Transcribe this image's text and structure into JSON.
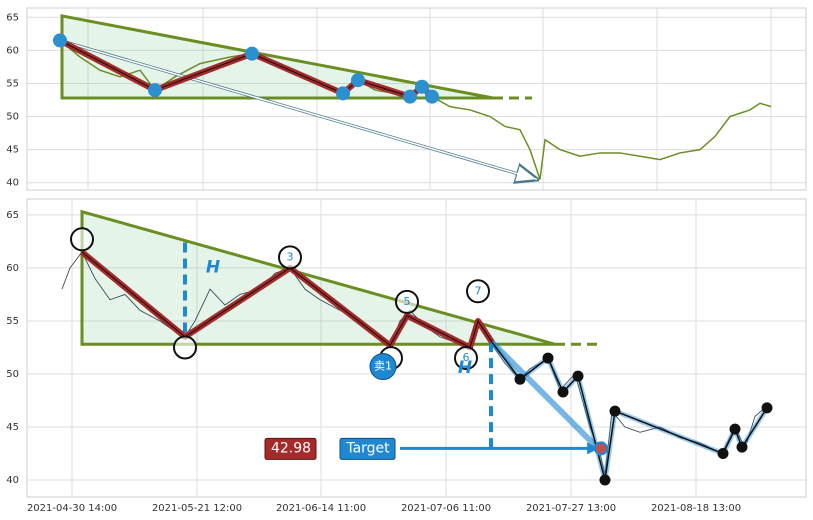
{
  "chart_data": [
    {
      "type": "line",
      "xlim": [
        27,
        806
      ],
      "ylim": [
        38.9,
        66.4
      ],
      "xticks": [
        88,
        203,
        317,
        430,
        543,
        657,
        771
      ],
      "yticks": [
        40,
        45,
        50,
        55,
        60,
        65
      ],
      "grid": true,
      "series": [
        {
          "color": "#6b8e23",
          "x": [
            60,
            80,
            100,
            120,
            140,
            155,
            175,
            200,
            230,
            252,
            270,
            290,
            310,
            330,
            345,
            358,
            375,
            395,
            410,
            422,
            432,
            450,
            470,
            490,
            505,
            520,
            530,
            540,
            545,
            560,
            580,
            600,
            620,
            640,
            660,
            680,
            700,
            715,
            730,
            750,
            760,
            771
          ],
          "values": [
            61.5,
            59,
            57,
            56,
            57,
            54,
            56,
            58,
            59,
            59.5,
            58,
            57,
            56,
            54.5,
            53.5,
            55.5,
            54,
            53.5,
            53,
            54.5,
            53,
            51.5,
            51,
            50,
            48.5,
            48,
            45,
            40.5,
            46.5,
            45,
            44,
            44.5,
            44.5,
            44,
            43.5,
            44.5,
            45,
            47,
            50,
            51,
            52,
            51.5
          ]
        }
      ],
      "triangle": {
        "color": "#6b8e23",
        "x": [
          62,
          62,
          493
        ],
        "values": [
          65.2,
          52.8,
          52.8
        ]
      },
      "extension": {
        "x": [
          493,
          532
        ],
        "values": [
          52.8,
          52.8
        ]
      },
      "zigzag": {
        "color": "#a52a2a",
        "x": [
          60,
          155,
          252,
          343,
          358,
          410,
          422,
          432
        ],
        "values": [
          61.5,
          54,
          59.5,
          53.5,
          55.5,
          53,
          54.5,
          53
        ]
      },
      "arrow": {
        "x": [
          60,
          537
        ],
        "values": [
          61.5,
          40.5
        ]
      }
    },
    {
      "type": "line",
      "xlim": [
        27,
        806
      ],
      "ylim": [
        38.4,
        66.5
      ],
      "xticks": [
        {
          "value": 72,
          "label": "2021-04-30 14:00"
        },
        {
          "value": 197,
          "label": "2021-05-21 12:00"
        },
        {
          "value": 321,
          "label": "2021-06-14 11:00"
        },
        {
          "value": 446,
          "label": "2021-07-06 11:00"
        },
        {
          "value": 571,
          "label": "2021-07-27 13:00"
        },
        {
          "value": 696,
          "label": "2021-08-18 13:00"
        }
      ],
      "yticks": [
        40,
        45,
        50,
        55,
        60,
        65
      ],
      "grid": true,
      "series": [
        {
          "color": "#3d4a5a",
          "x": [
            62,
            70,
            82,
            95,
            110,
            125,
            140,
            160,
            175,
            185,
            195,
            210,
            225,
            240,
            260,
            275,
            290,
            305,
            320,
            340,
            360,
            375,
            390,
            400,
            410,
            425,
            440,
            455,
            470,
            478,
            490,
            505,
            520,
            530,
            540,
            548,
            560,
            575,
            590,
            600,
            605,
            612,
            625,
            640,
            660,
            680,
            700,
            722,
            735,
            745,
            755,
            767
          ],
          "values": [
            58,
            60,
            61.5,
            59,
            57,
            57.5,
            56,
            55,
            54,
            53.5,
            55,
            58,
            56.5,
            57.5,
            58,
            59.5,
            60,
            58,
            57,
            56,
            55,
            54,
            52.5,
            55,
            56,
            54.5,
            53.5,
            53,
            52.5,
            55,
            53,
            51,
            49.5,
            50.5,
            51,
            51.5,
            48.5,
            50,
            45,
            42.5,
            40.5,
            46.5,
            45,
            44.5,
            45,
            44,
            43.5,
            42.5,
            45,
            43,
            46,
            47
          ]
        }
      ],
      "triangle": {
        "color": "#6b8e23",
        "x": [
          82,
          82,
          555
        ],
        "values": [
          65.3,
          52.8,
          52.8
        ]
      },
      "extension": {
        "x": [
          555,
          598
        ],
        "values": [
          52.8,
          52.8
        ]
      },
      "zigzag": {
        "color": "#a52a2a",
        "x": [
          82,
          185,
          290,
          390,
          407,
          470,
          478,
          492
        ],
        "values": [
          61.5,
          53.5,
          60,
          52.7,
          55.5,
          52.5,
          55,
          53
        ]
      },
      "pivots": {
        "x": [
          82,
          185,
          290,
          391,
          407,
          466,
          478
        ],
        "values": [
          62.7,
          52.5,
          61,
          51.5,
          56.8,
          51.5,
          57.8
        ],
        "labels": [
          null,
          null,
          "3",
          null,
          "5",
          "6",
          "7"
        ]
      },
      "projection": {
        "color": "#1f88d2",
        "x": [
          492,
          520,
          548,
          563,
          578,
          605,
          615,
          723,
          735,
          742,
          767
        ],
        "values": [
          53,
          49.5,
          51.5,
          48.3,
          49.8,
          40,
          46.5,
          42.5,
          44.8,
          43.1,
          46.8
        ]
      },
      "h_label": "H",
      "h_lines": [
        {
          "x": 185,
          "values": [
            62.4,
            53.5
          ]
        },
        {
          "x": 491,
          "values": [
            53,
            43
          ]
        }
      ],
      "sell": {
        "label": "卖1",
        "x": 383,
        "value": 50.7
      },
      "target_label": "Target",
      "target_price": 42.98,
      "target_x": [
        400,
        598
      ]
    }
  ]
}
